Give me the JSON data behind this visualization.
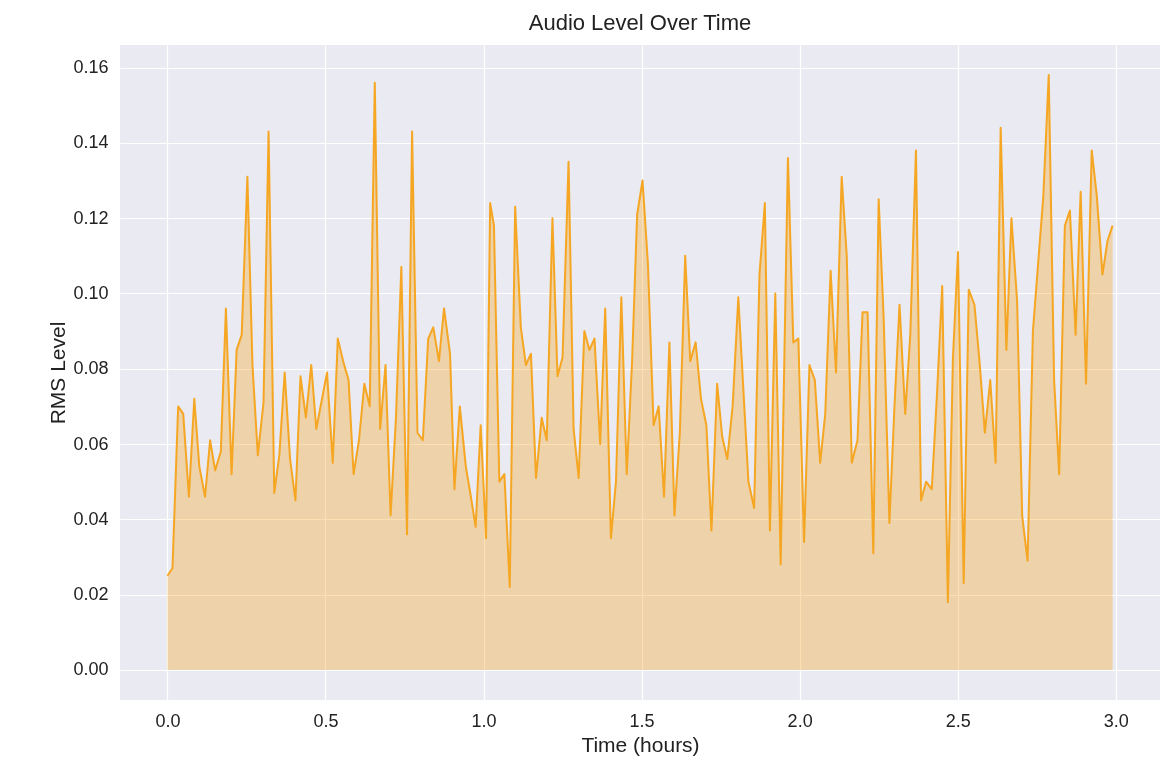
{
  "chart_data": {
    "type": "area",
    "title": "Audio Level Over Time",
    "xlabel": "Time (hours)",
    "ylabel": "RMS Level",
    "x": [
      0.0,
      0.016,
      0.034,
      0.05,
      0.068,
      0.085,
      0.101,
      0.119,
      0.135,
      0.151,
      0.169,
      0.185,
      0.203,
      0.219,
      0.235,
      0.253,
      0.269,
      0.286,
      0.304,
      0.32,
      0.338,
      0.354,
      0.371,
      0.388,
      0.405,
      0.421,
      0.438,
      0.455,
      0.471,
      0.489,
      0.505,
      0.523,
      0.539,
      0.556,
      0.573,
      0.589,
      0.606,
      0.623,
      0.64,
      0.656,
      0.673,
      0.69,
      0.706,
      0.723,
      0.74,
      0.758,
      0.774,
      0.791,
      0.808,
      0.825,
      0.841,
      0.859,
      0.875,
      0.894,
      0.908,
      0.925,
      0.944,
      0.96,
      0.975,
      0.991,
      1.008,
      1.021,
      1.033,
      1.05,
      1.066,
      1.083,
      1.1,
      1.118,
      1.134,
      1.15,
      1.166,
      1.184,
      1.2,
      1.218,
      1.234,
      1.25,
      1.269,
      1.285,
      1.301,
      1.319,
      1.335,
      1.351,
      1.369,
      1.385,
      1.403,
      1.419,
      1.436,
      1.453,
      1.47,
      1.486,
      1.503,
      1.52,
      1.538,
      1.554,
      1.571,
      1.588,
      1.604,
      1.621,
      1.638,
      1.654,
      1.671,
      1.688,
      1.705,
      1.721,
      1.739,
      1.755,
      1.771,
      1.788,
      1.806,
      1.838,
      1.856,
      1.873,
      1.89,
      1.906,
      1.923,
      1.94,
      1.963,
      1.98,
      1.996,
      2.014,
      2.031,
      2.048,
      2.065,
      2.081,
      2.098,
      2.115,
      2.133,
      2.149,
      2.165,
      2.183,
      2.199,
      2.215,
      2.233,
      2.25,
      2.266,
      2.284,
      2.3,
      2.316,
      2.334,
      2.35,
      2.368,
      2.384,
      2.4,
      2.418,
      2.435,
      2.451,
      2.469,
      2.485,
      2.501,
      2.519,
      2.535,
      2.553,
      2.569,
      2.586,
      2.603,
      2.62,
      2.636,
      2.654,
      2.67,
      2.688,
      2.704,
      2.721,
      2.738,
      2.771,
      2.788,
      2.805,
      2.821,
      2.839,
      2.855,
      2.873,
      2.889,
      2.906,
      2.924,
      2.94,
      2.958,
      2.974,
      2.99
    ],
    "series": [
      {
        "color": "#f5a623",
        "values": [
          0.025,
          0.027,
          0.07,
          0.068,
          0.046,
          0.072,
          0.054,
          0.046,
          0.061,
          0.053,
          0.058,
          0.096,
          0.052,
          0.085,
          0.089,
          0.131,
          0.081,
          0.057,
          0.071,
          0.143,
          0.047,
          0.057,
          0.079,
          0.056,
          0.045,
          0.078,
          0.067,
          0.081,
          0.064,
          0.072,
          0.079,
          0.055,
          0.088,
          0.082,
          0.077,
          0.052,
          0.061,
          0.076,
          0.07,
          0.156,
          0.064,
          0.081,
          0.041,
          0.067,
          0.107,
          0.036,
          0.143,
          0.063,
          0.061,
          0.088,
          0.091,
          0.082,
          0.096,
          0.084,
          0.048,
          0.07,
          0.054,
          0.046,
          0.038,
          0.065,
          0.035,
          0.124,
          0.118,
          0.05,
          0.052,
          0.022,
          0.123,
          0.091,
          0.081,
          0.084,
          0.051,
          0.067,
          0.061,
          0.12,
          0.078,
          0.083,
          0.135,
          0.064,
          0.051,
          0.09,
          0.085,
          0.088,
          0.06,
          0.096,
          0.035,
          0.05,
          0.099,
          0.052,
          0.082,
          0.121,
          0.13,
          0.108,
          0.065,
          0.07,
          0.046,
          0.087,
          0.041,
          0.063,
          0.11,
          0.082,
          0.087,
          0.072,
          0.065,
          0.037,
          0.076,
          0.062,
          0.056,
          0.07,
          0.099,
          0.05,
          0.043,
          0.105,
          0.124,
          0.037,
          0.1,
          0.028,
          0.136,
          0.087,
          0.088,
          0.034,
          0.081,
          0.077,
          0.055,
          0.068,
          0.106,
          0.079,
          0.131,
          0.11,
          0.055,
          0.061,
          0.095,
          0.095,
          0.031,
          0.125,
          0.093,
          0.039,
          0.07,
          0.097,
          0.068,
          0.089,
          0.138,
          0.045,
          0.05,
          0.048,
          0.074,
          0.102,
          0.018,
          0.083,
          0.111,
          0.023,
          0.101,
          0.097,
          0.082,
          0.063,
          0.077,
          0.055,
          0.144,
          0.085,
          0.12,
          0.098,
          0.041,
          0.029,
          0.09,
          0.126,
          0.158,
          0.077,
          0.052,
          0.118,
          0.122,
          0.089,
          0.127,
          0.076,
          0.138,
          0.126,
          0.105,
          0.114,
          0.118
        ]
      }
    ],
    "xlim": [
      -0.15,
      3.14
    ],
    "ylim": [
      -0.008,
      0.166
    ],
    "xticks": [
      {
        "value": 0,
        "label": "0.0"
      },
      {
        "value": 0.5,
        "label": "0.5"
      },
      {
        "value": 1,
        "label": "1.0"
      },
      {
        "value": 1.5,
        "label": "1.5"
      },
      {
        "value": 2,
        "label": "2.0"
      },
      {
        "value": 2.5,
        "label": "2.5"
      },
      {
        "value": 3,
        "label": "3.0"
      }
    ],
    "yticks": [
      {
        "value": 0,
        "label": "0.00"
      },
      {
        "value": 0.02,
        "label": "0.02"
      },
      {
        "value": 0.04,
        "label": "0.04"
      },
      {
        "value": 0.06,
        "label": "0.06"
      },
      {
        "value": 0.08,
        "label": "0.08"
      },
      {
        "value": 0.1,
        "label": "0.10"
      },
      {
        "value": 0.12,
        "label": "0.12"
      },
      {
        "value": 0.14,
        "label": "0.14"
      },
      {
        "value": 0.16,
        "label": "0.16"
      }
    ],
    "grid": true
  }
}
